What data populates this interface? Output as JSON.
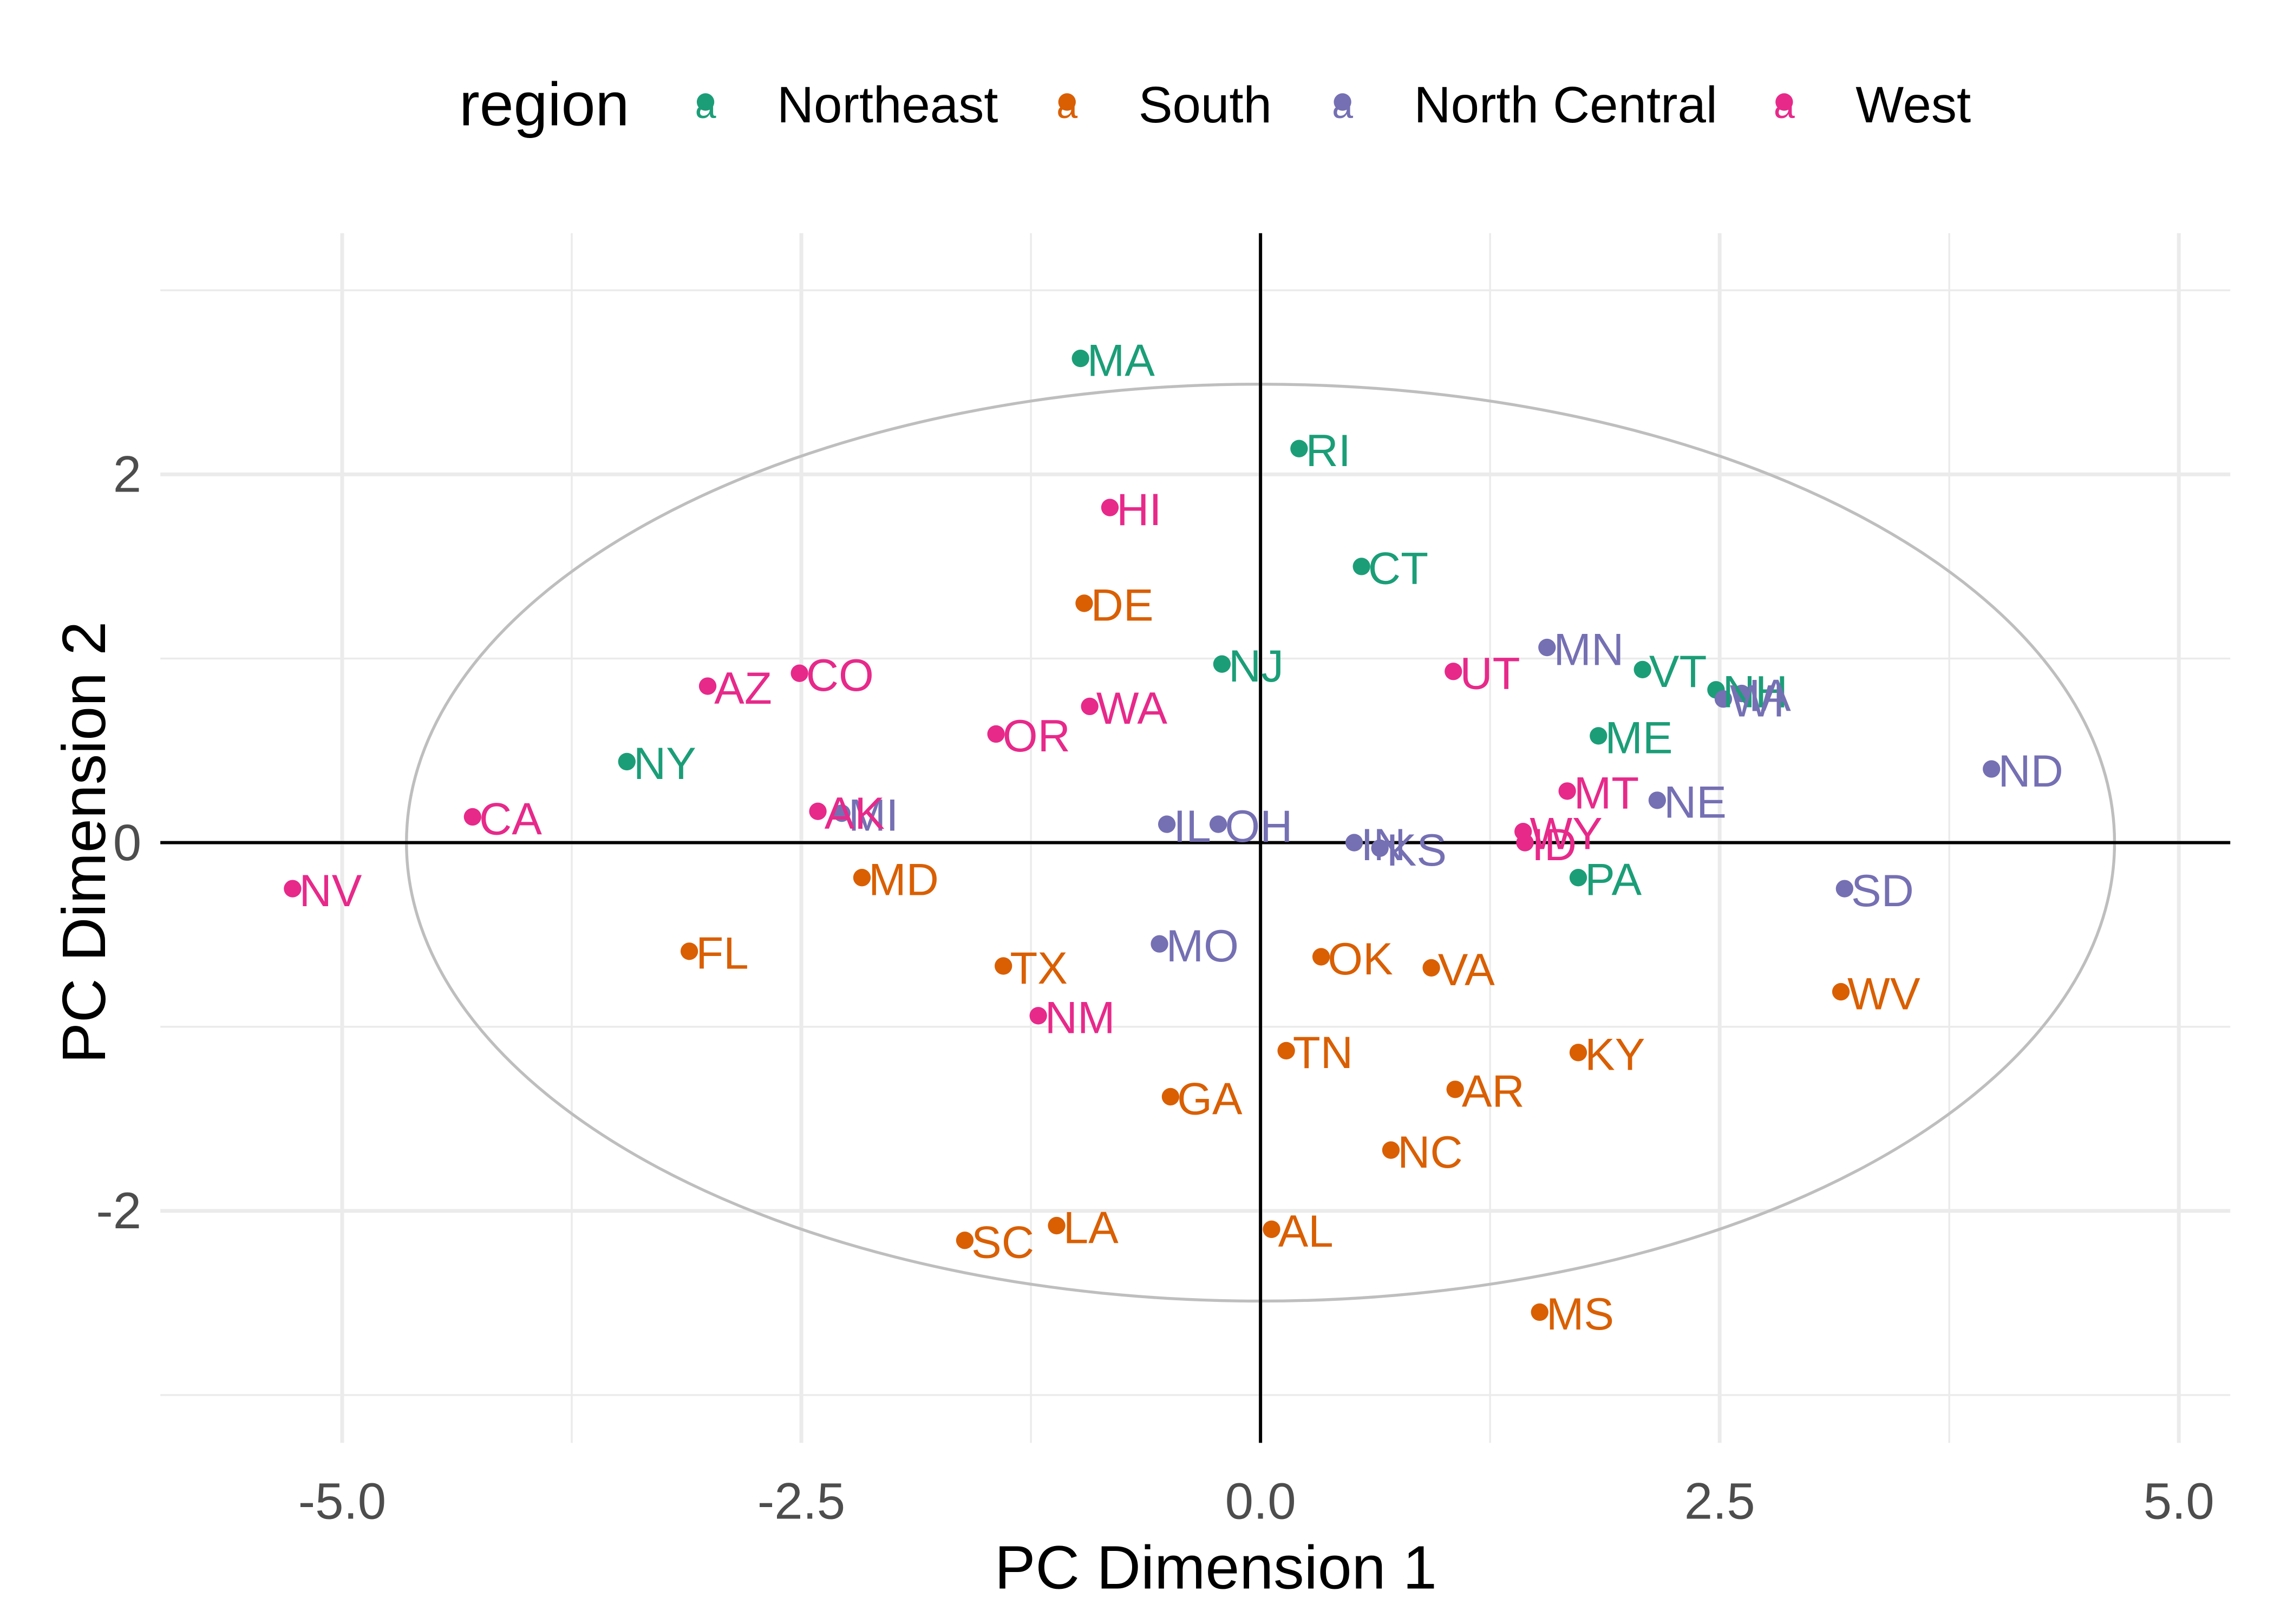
{
  "chart_data": {
    "type": "scatter",
    "xlabel": "PC Dimension 1",
    "ylabel": "PC Dimension 2",
    "xlim": [
      -5.99,
      5.28
    ],
    "ylim": [
      -3.26,
      3.31
    ],
    "x_ticks": [
      {
        "value": -5,
        "label": "-5.0"
      },
      {
        "value": -2.5,
        "label": "-2.5"
      },
      {
        "value": 0,
        "label": "0.0"
      },
      {
        "value": 2.5,
        "label": "2.5"
      },
      {
        "value": 5,
        "label": "5.0"
      }
    ],
    "y_ticks": [
      {
        "value": -2,
        "label": "-2"
      },
      {
        "value": 0,
        "label": "0"
      },
      {
        "value": 2,
        "label": "2"
      }
    ],
    "grid": true,
    "legend": {
      "title": "region",
      "position": "top",
      "key_glyph": "a"
    },
    "reference_lines": {
      "vertical_at_x": 0,
      "horizontal_at_y": 0,
      "color": "#000000"
    },
    "ellipse": {
      "center": [
        0,
        0
      ],
      "semi_axis_x": 4.65,
      "semi_axis_y": 2.49,
      "color": "#BEBEBE"
    },
    "series": [
      {
        "name": "Northeast",
        "color": "#1B9E77",
        "points": [
          {
            "label": "CT",
            "x": 0.55,
            "y": 1.5
          },
          {
            "label": "ME",
            "x": 1.84,
            "y": 0.58
          },
          {
            "label": "MA",
            "x": -0.98,
            "y": 2.63
          },
          {
            "label": "NH",
            "x": 2.48,
            "y": 0.83
          },
          {
            "label": "NJ",
            "x": -0.21,
            "y": 0.97
          },
          {
            "label": "NY",
            "x": -3.45,
            "y": 0.44
          },
          {
            "label": "PA",
            "x": 1.73,
            "y": -0.19
          },
          {
            "label": "RI",
            "x": 0.21,
            "y": 2.14
          },
          {
            "label": "VT",
            "x": 2.08,
            "y": 0.94
          }
        ]
      },
      {
        "name": "South",
        "color": "#D95F02",
        "points": [
          {
            "label": "AL",
            "x": 0.06,
            "y": -2.1
          },
          {
            "label": "AR",
            "x": 1.06,
            "y": -1.34
          },
          {
            "label": "DE",
            "x": -0.96,
            "y": 1.3
          },
          {
            "label": "FL",
            "x": -3.11,
            "y": -0.59
          },
          {
            "label": "GA",
            "x": -0.49,
            "y": -1.38
          },
          {
            "label": "KY",
            "x": 1.73,
            "y": -1.14
          },
          {
            "label": "LA",
            "x": -1.11,
            "y": -2.08
          },
          {
            "label": "MD",
            "x": -2.17,
            "y": -0.19
          },
          {
            "label": "MS",
            "x": 1.52,
            "y": -2.55
          },
          {
            "label": "NC",
            "x": 0.71,
            "y": -1.67
          },
          {
            "label": "OK",
            "x": 0.33,
            "y": -0.62
          },
          {
            "label": "SC",
            "x": -1.61,
            "y": -2.16
          },
          {
            "label": "TN",
            "x": 0.14,
            "y": -1.13
          },
          {
            "label": "TX",
            "x": -1.4,
            "y": -0.67
          },
          {
            "label": "VA",
            "x": 0.93,
            "y": -0.68
          },
          {
            "label": "WV",
            "x": 3.16,
            "y": -0.81
          }
        ]
      },
      {
        "name": "North Central",
        "color": "#7570B3",
        "points": [
          {
            "label": "IL",
            "x": -0.51,
            "y": 0.1
          },
          {
            "label": "IN",
            "x": 0.51,
            "y": 0.0
          },
          {
            "label": "IA",
            "x": 2.62,
            "y": 0.81
          },
          {
            "label": "KS",
            "x": 0.65,
            "y": -0.03
          },
          {
            "label": "MI",
            "x": -2.28,
            "y": 0.16
          },
          {
            "label": "MN",
            "x": 1.56,
            "y": 1.06
          },
          {
            "label": "MO",
            "x": -0.55,
            "y": -0.55
          },
          {
            "label": "NE",
            "x": 2.16,
            "y": 0.23
          },
          {
            "label": "ND",
            "x": 3.98,
            "y": 0.4
          },
          {
            "label": "OH",
            "x": -0.23,
            "y": 0.1
          },
          {
            "label": "SD",
            "x": 3.18,
            "y": -0.25
          },
          {
            "label": "WI",
            "x": 2.52,
            "y": 0.78
          }
        ]
      },
      {
        "name": "West",
        "color": "#E7298A",
        "points": [
          {
            "label": "AK",
            "x": -2.41,
            "y": 0.17
          },
          {
            "label": "AZ",
            "x": -3.01,
            "y": 0.85
          },
          {
            "label": "CA",
            "x": -4.29,
            "y": 0.14
          },
          {
            "label": "CO",
            "x": -2.51,
            "y": 0.92
          },
          {
            "label": "HI",
            "x": -0.82,
            "y": 1.82
          },
          {
            "label": "ID",
            "x": 1.44,
            "y": 0.0
          },
          {
            "label": "MT",
            "x": 1.67,
            "y": 0.28
          },
          {
            "label": "NV",
            "x": -5.27,
            "y": -0.25
          },
          {
            "label": "NM",
            "x": -1.21,
            "y": -0.94
          },
          {
            "label": "OR",
            "x": -1.44,
            "y": 0.59
          },
          {
            "label": "UT",
            "x": 1.05,
            "y": 0.93
          },
          {
            "label": "WA",
            "x": -0.93,
            "y": 0.74
          },
          {
            "label": "WY",
            "x": 1.43,
            "y": 0.06
          }
        ]
      }
    ]
  }
}
